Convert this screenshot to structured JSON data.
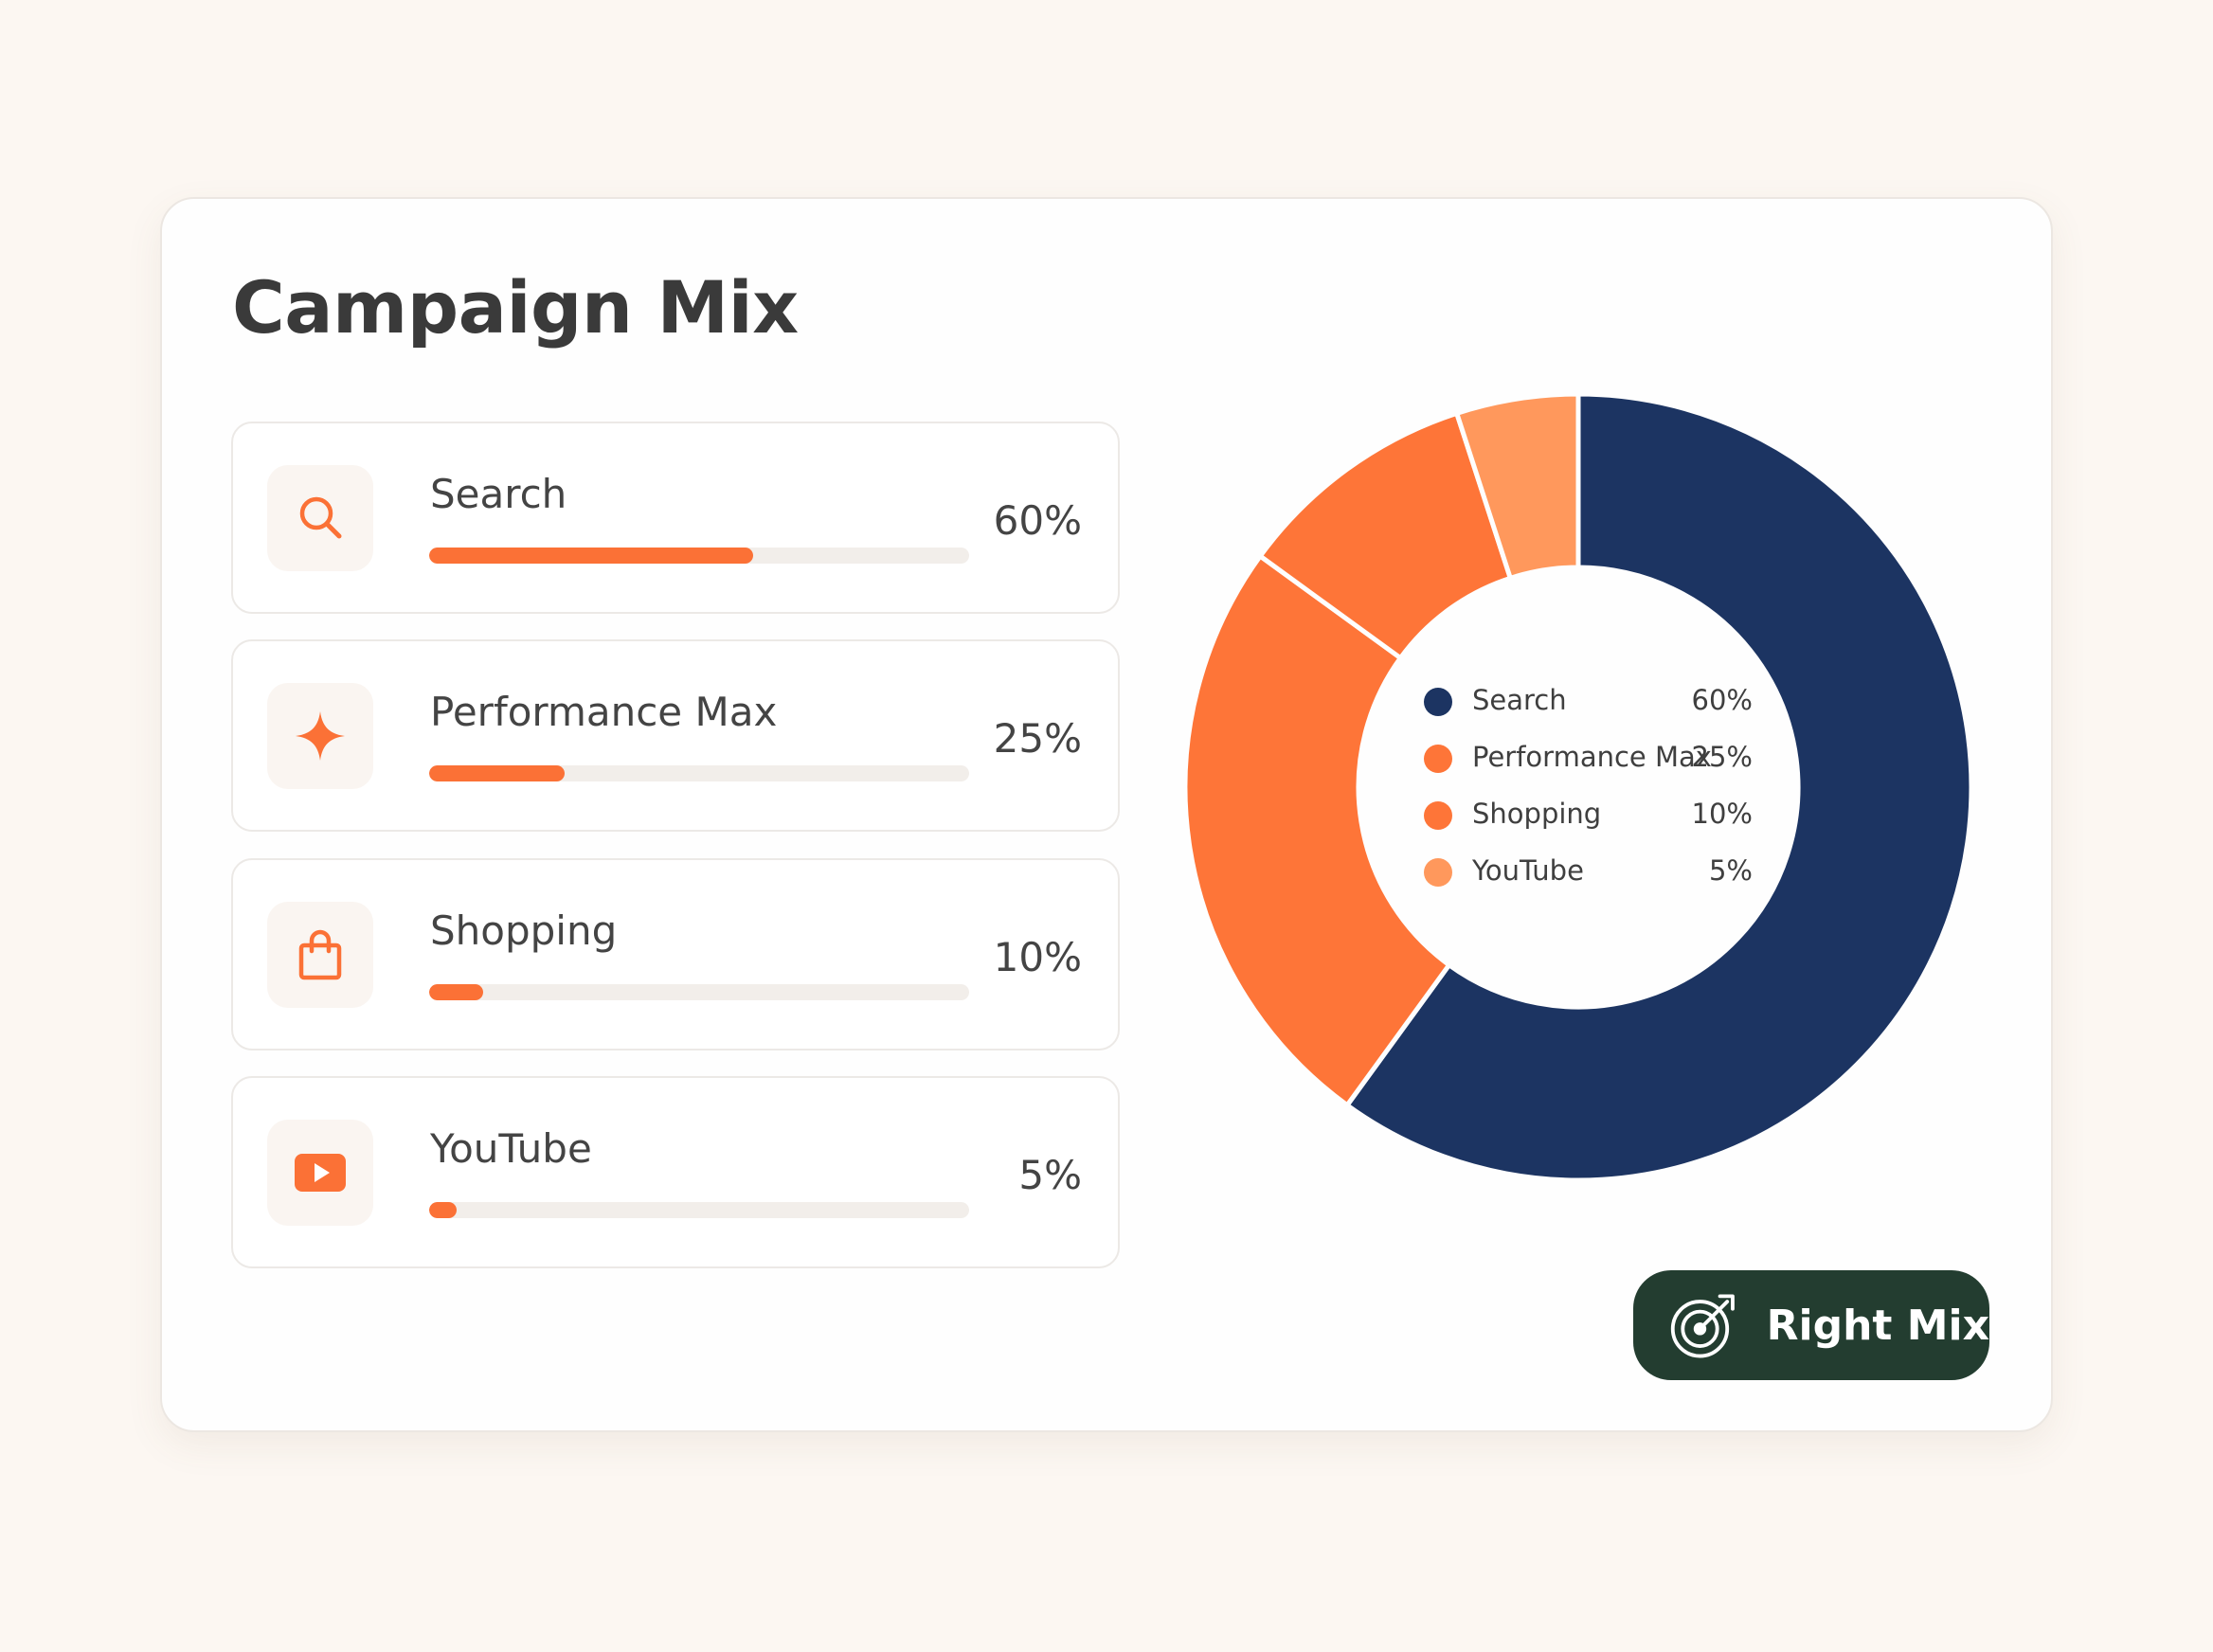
{
  "title": "Campaign Mix",
  "channels": [
    {
      "label": "Search",
      "value_label": "60%",
      "share": 0.6,
      "icon": "search-icon"
    },
    {
      "label": "Performance Max",
      "value_label": "25%",
      "share": 0.25,
      "icon": "sparkle-icon"
    },
    {
      "label": "Shopping",
      "value_label": "10%",
      "share": 0.1,
      "icon": "shopping-bag-icon"
    },
    {
      "label": "YouTube",
      "value_label": "5%",
      "share": 0.05,
      "icon": "youtube-play-icon"
    }
  ],
  "badge": {
    "label": "Right Mix",
    "icon": "target-arrow-icon"
  },
  "colors": {
    "accent": "#fb7136",
    "search": "#1c3462",
    "performance_max": "#fe7538",
    "shopping": "#fe7538",
    "youtube": "#ff985c",
    "badge_bg": "#233d30"
  },
  "chart_data": {
    "type": "pie",
    "categories": [
      "Search",
      "Performance Max",
      "Shopping",
      "YouTube"
    ],
    "values": [
      60,
      25,
      10,
      5
    ],
    "value_labels": [
      "60%",
      "25%",
      "10%",
      "5%"
    ],
    "colors": [
      "#1c3462",
      "#fe7538",
      "#fe7538",
      "#ff985c"
    ],
    "legend": "center"
  }
}
